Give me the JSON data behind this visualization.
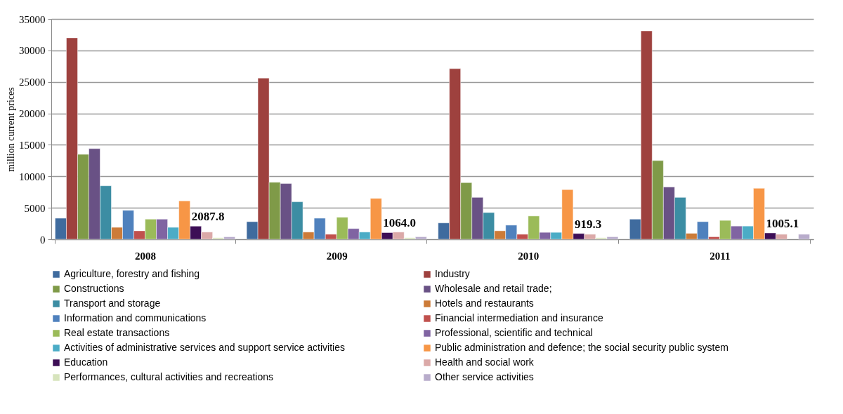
{
  "chart_data": {
    "type": "bar",
    "ylabel": "million current prices",
    "categories": [
      "2008",
      "2009",
      "2010",
      "2011"
    ],
    "ylim": [
      0,
      35000
    ],
    "yticks": [
      0,
      5000,
      10000,
      15000,
      20000,
      25000,
      30000,
      35000
    ],
    "grid": "y",
    "legend": "bottom",
    "series": [
      {
        "name": "Agriculture, forestry and fishing",
        "color": "#3f6b9e",
        "values": [
          3350,
          2800,
          2600,
          3200
        ]
      },
      {
        "name": "Industry",
        "color": "#9e413e",
        "values": [
          32000,
          25600,
          27100,
          33100
        ]
      },
      {
        "name": "Constructions",
        "color": "#7f9a48",
        "values": [
          13500,
          9050,
          9000,
          12500
        ]
      },
      {
        "name": "Wholesale and retail trade;",
        "color": "#695185",
        "values": [
          14400,
          8850,
          6650,
          8300
        ]
      },
      {
        "name": "Transport and storage",
        "color": "#3c8da3",
        "values": [
          8500,
          5950,
          4250,
          6650
        ]
      },
      {
        "name": "Hotels and restaurants",
        "color": "#cc7b38",
        "values": [
          1900,
          1150,
          1350,
          950
        ]
      },
      {
        "name": "Information and communications",
        "color": "#4f81bd",
        "values": [
          4600,
          3350,
          2250,
          2800
        ]
      },
      {
        "name": "Financial intermediation and insurance",
        "color": "#c0504d",
        "values": [
          1350,
          800,
          800,
          400
        ]
      },
      {
        "name": "Real estate transactions",
        "color": "#9bbb59",
        "values": [
          3200,
          3500,
          3700,
          3000
        ]
      },
      {
        "name": "Professional, scientific and technical",
        "color": "#8064a2",
        "values": [
          3200,
          1700,
          1100,
          2100
        ]
      },
      {
        "name": "Activities of administrative services and support service activities",
        "color": "#4bacc6",
        "values": [
          1900,
          1150,
          1100,
          2100
        ]
      },
      {
        "name": "Public administration and defence; the social security public system",
        "color": "#f79646",
        "values": [
          6100,
          6500,
          7900,
          8100
        ]
      },
      {
        "name": "Education",
        "color": "#3d0e56",
        "values": [
          2087.8,
          1064.0,
          919.3,
          1005.1
        ],
        "value_labels": [
          "2087.8",
          "1064.0",
          "919.3",
          "1005.1"
        ]
      },
      {
        "name": "Health and social work",
        "color": "#dba9a8",
        "values": [
          1150,
          1150,
          800,
          800
        ]
      },
      {
        "name": "Performances, cultural activities and recreations",
        "color": "#d7e4bd",
        "values": [
          250,
          250,
          250,
          null
        ]
      },
      {
        "name": "Other service activities",
        "color": "#b8accb",
        "values": [
          400,
          400,
          400,
          800
        ]
      }
    ]
  }
}
